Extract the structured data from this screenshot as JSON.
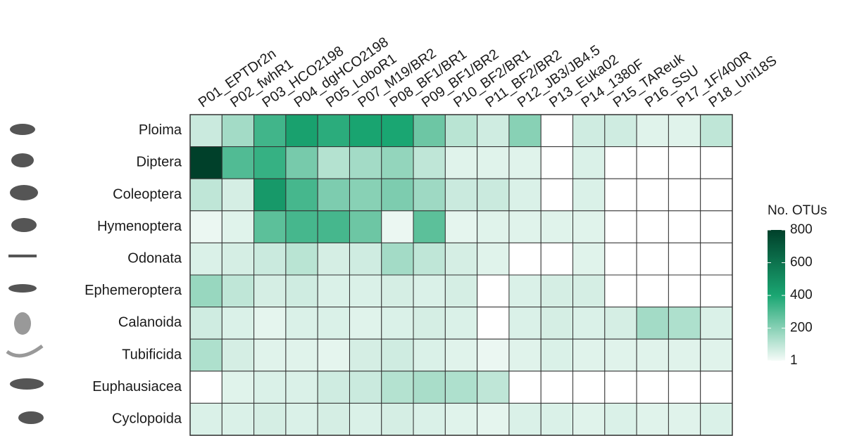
{
  "chart_data": {
    "type": "heatmap",
    "columns": [
      "P01_EPTDr2n",
      "P02_fwhR1",
      "P03_HCO2198",
      "P04_dgHCO2198",
      "P05_LoboR1",
      "P07_M19/BR2",
      "P08_BF1/BR1",
      "P09_BF1/BR2",
      "P10_BF2/BR1",
      "P11_BF2/BR2",
      "P12_JB3/JB4.5",
      "P13_Euka02",
      "P14_1380F",
      "P15_TAReuk",
      "P16_SSU",
      "P17_1F/400R",
      "P18_Uni18S"
    ],
    "rows": [
      "Ploima",
      "Diptera",
      "Coleoptera",
      "Hymenoptera",
      "Odonata",
      "Ephemeroptera",
      "Calanoida",
      "Tubificida",
      "Euphausiacea",
      "Cyclopoida"
    ],
    "values": [
      [
        80,
        150,
        330,
        420,
        370,
        410,
        400,
        250,
        110,
        70,
        200,
        null,
        70,
        70,
        40,
        40,
        100
      ],
      [
        800,
        300,
        350,
        230,
        120,
        150,
        180,
        100,
        40,
        40,
        40,
        null,
        50,
        null,
        null,
        null,
        null
      ],
      [
        100,
        60,
        450,
        320,
        220,
        200,
        220,
        160,
        80,
        80,
        50,
        null,
        50,
        null,
        null,
        null,
        null
      ],
      [
        20,
        40,
        280,
        320,
        320,
        250,
        20,
        280,
        30,
        40,
        40,
        40,
        40,
        null,
        null,
        null,
        null
      ],
      [
        50,
        60,
        80,
        110,
        60,
        70,
        150,
        100,
        60,
        40,
        null,
        null,
        40,
        null,
        null,
        null,
        null
      ],
      [
        170,
        100,
        60,
        70,
        50,
        50,
        60,
        50,
        60,
        null,
        50,
        60,
        60,
        null,
        null,
        null,
        null
      ],
      [
        70,
        50,
        30,
        50,
        50,
        40,
        50,
        60,
        50,
        null,
        50,
        60,
        50,
        60,
        150,
        130,
        50
      ],
      [
        130,
        60,
        40,
        40,
        30,
        60,
        70,
        50,
        40,
        20,
        40,
        50,
        40,
        40,
        40,
        40,
        40
      ],
      [
        null,
        40,
        50,
        50,
        70,
        80,
        120,
        140,
        130,
        100,
        null,
        null,
        null,
        null,
        null,
        null,
        null
      ],
      [
        50,
        50,
        60,
        50,
        60,
        50,
        60,
        50,
        40,
        30,
        50,
        50,
        40,
        50,
        40,
        40,
        50
      ]
    ],
    "legend_title": "No. OTUs",
    "zlim": [
      1,
      800
    ],
    "zticks": [
      800,
      600,
      400,
      200,
      1
    ],
    "colors": [
      "#f5fbf8",
      "#1aa672",
      "#00402a"
    ],
    "missing_color": "#ffffff"
  }
}
